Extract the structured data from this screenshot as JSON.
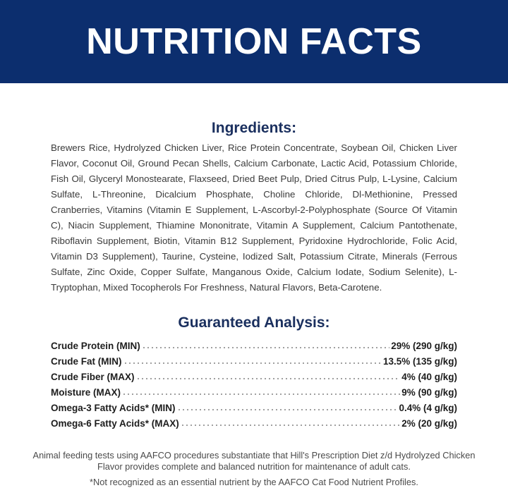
{
  "header": {
    "title": "NUTRITION FACTS"
  },
  "ingredients": {
    "heading": "Ingredients:",
    "text": "Brewers Rice, Hydrolyzed Chicken Liver, Rice Protein Concentrate, Soybean Oil, Chicken Liver Flavor, Coconut Oil, Ground Pecan Shells, Calcium Carbonate, Lactic Acid, Potassium Chloride, Fish Oil, Glyceryl Monostearate, Flaxseed, Dried Beet Pulp, Dried Citrus Pulp, L-Lysine, Calcium Sulfate, L-Threonine, Dicalcium Phosphate, Choline Chloride, Dl-Methionine, Pressed Cranberries, Vitamins (Vitamin E Supplement, L-Ascorbyl-2-Polyphosphate (Source Of Vitamin C), Niacin Supplement, Thiamine Mononitrate, Vitamin A Supplement, Calcium Pantothenate, Riboflavin Supplement, Biotin, Vitamin B12 Supplement, Pyridoxine Hydrochloride, Folic Acid, Vitamin D3 Supplement), Taurine, Cysteine, Iodized Salt, Potassium Citrate, Minerals (Ferrous Sulfate, Zinc Oxide, Copper Sulfate, Manganous Oxide, Calcium Iodate, Sodium Selenite), L-Tryptophan, Mixed Tocopherols For Freshness, Natural Flavors, Beta-Carotene."
  },
  "analysis": {
    "heading": "Guaranteed Analysis:",
    "rows": [
      [
        "Crude Protein (MIN)",
        "29% (290 g/kg)"
      ],
      [
        "Crude Fat (MIN)",
        "13.5% (135 g/kg)"
      ],
      [
        "Crude Fiber (MAX)",
        "4% (40 g/kg)"
      ],
      [
        "Moisture (MAX)",
        "9% (90 g/kg)"
      ],
      [
        "Omega-3 Fatty Acids* (MIN)",
        "0.4% (4 g/kg)"
      ],
      [
        "Omega-6 Fatty Acids* (MAX)",
        "2% (20 g/kg)"
      ]
    ]
  },
  "footnotes": [
    "Animal feeding tests using AAFCO procedures substantiate that Hill's Prescription Diet z/d Hydrolyzed Chicken Flavor provides complete and balanced nutrition for maintenance of adult cats.",
    "*Not recognized as an essential nutrient by the AAFCO Cat Food Nutrient Profiles."
  ]
}
